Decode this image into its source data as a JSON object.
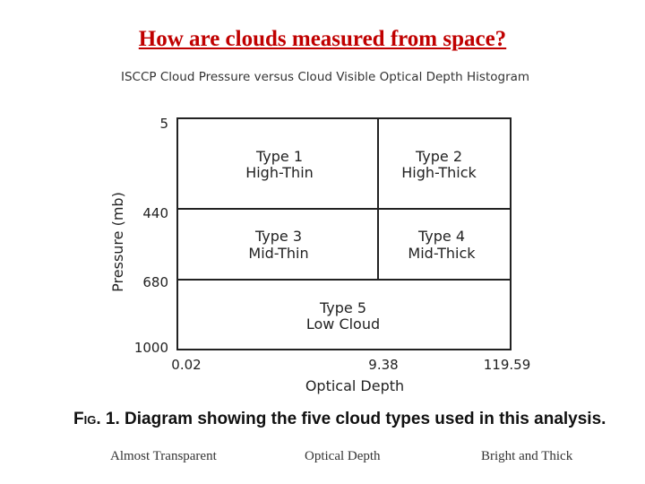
{
  "page": {
    "title": "How are clouds measured from space?",
    "subtitle": "ISCCP Cloud Pressure versus Cloud Visible Optical Depth Histogram"
  },
  "diagram": {
    "y_axis": {
      "label": "Pressure (mb)",
      "ticks": [
        "5",
        "440",
        "680",
        "1000"
      ]
    },
    "x_axis": {
      "label": "Optical Depth",
      "ticks": [
        "0.02",
        "9.38",
        "119.59"
      ]
    },
    "cells": [
      {
        "line1": "Type 1",
        "line2": "High-Thin"
      },
      {
        "line1": "Type 2",
        "line2": "High-Thick"
      },
      {
        "line1": "Type 3",
        "line2": "Mid-Thin"
      },
      {
        "line1": "Type 4",
        "line2": "Mid-Thick"
      },
      {
        "line1": "Type 5",
        "line2": "Low Cloud"
      }
    ]
  },
  "caption": {
    "fig_label": "Fig. 1.",
    "text": "Diagram showing the five cloud types used in this analysis."
  },
  "footer": {
    "left": "Almost Transparent",
    "center": "Optical Depth",
    "right": "Bright and Thick"
  },
  "colors": {
    "title": "#c00000"
  }
}
